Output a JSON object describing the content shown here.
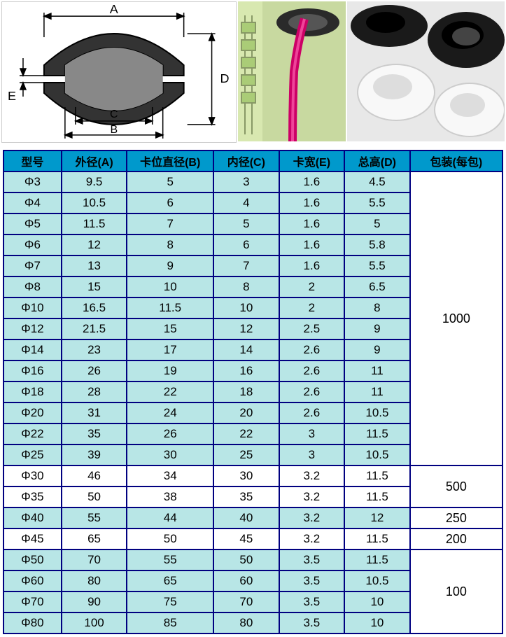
{
  "diagram_labels": {
    "A": "A",
    "B": "B",
    "C": "C",
    "D": "D",
    "E": "E"
  },
  "table": {
    "headers": [
      "型号",
      "外径(A)",
      "卡位直径(B)",
      "内径(C)",
      "卡宽(E)",
      "总高(D)",
      "包装(每包)"
    ],
    "header_bg": "#0099cc",
    "stripe_bg": "#b8e6e6",
    "plain_bg": "#ffffff",
    "border_color": "#000080",
    "packs": [
      {
        "span": 14,
        "label": "1000"
      },
      {
        "span": 2,
        "label": "500"
      },
      {
        "span": 1,
        "label": "250"
      },
      {
        "span": 1,
        "label": "200"
      },
      {
        "span": 4,
        "label": "100"
      }
    ],
    "rows": [
      {
        "model": "Φ3",
        "a": "9.5",
        "b": "5",
        "c": "3",
        "e": "1.6",
        "d": "4.5",
        "stripe": true,
        "packStart": true,
        "packIdx": 0
      },
      {
        "model": "Φ4",
        "a": "10.5",
        "b": "6",
        "c": "4",
        "e": "1.6",
        "d": "5.5",
        "stripe": true
      },
      {
        "model": "Φ5",
        "a": "11.5",
        "b": "7",
        "c": "5",
        "e": "1.6",
        "d": "5",
        "stripe": true
      },
      {
        "model": "Φ6",
        "a": "12",
        "b": "8",
        "c": "6",
        "e": "1.6",
        "d": "5.8",
        "stripe": true
      },
      {
        "model": "Φ7",
        "a": "13",
        "b": "9",
        "c": "7",
        "e": "1.6",
        "d": "5.5",
        "stripe": true
      },
      {
        "model": "Φ8",
        "a": "15",
        "b": "10",
        "c": "8",
        "e": "2",
        "d": "6.5",
        "stripe": true
      },
      {
        "model": "Φ10",
        "a": "16.5",
        "b": "11.5",
        "c": "10",
        "e": "2",
        "d": "8",
        "stripe": true
      },
      {
        "model": "Φ12",
        "a": "21.5",
        "b": "15",
        "c": "12",
        "e": "2.5",
        "d": "9",
        "stripe": true
      },
      {
        "model": "Φ14",
        "a": "23",
        "b": "17",
        "c": "14",
        "e": "2.6",
        "d": "9",
        "stripe": true
      },
      {
        "model": "Φ16",
        "a": "26",
        "b": "19",
        "c": "16",
        "e": "2.6",
        "d": "11",
        "stripe": true
      },
      {
        "model": "Φ18",
        "a": "28",
        "b": "22",
        "c": "18",
        "e": "2.6",
        "d": "11",
        "stripe": true
      },
      {
        "model": "Φ20",
        "a": "31",
        "b": "24",
        "c": "20",
        "e": "2.6",
        "d": "10.5",
        "stripe": true
      },
      {
        "model": "Φ22",
        "a": "35",
        "b": "26",
        "c": "22",
        "e": "3",
        "d": "11.5",
        "stripe": true
      },
      {
        "model": "Φ25",
        "a": "39",
        "b": "30",
        "c": "25",
        "e": "3",
        "d": "10.5",
        "stripe": true
      },
      {
        "model": "Φ30",
        "a": "46",
        "b": "34",
        "c": "30",
        "e": "3.2",
        "d": "11.5",
        "stripe": false,
        "packStart": true,
        "packIdx": 1
      },
      {
        "model": "Φ35",
        "a": "50",
        "b": "38",
        "c": "35",
        "e": "3.2",
        "d": "11.5",
        "stripe": false
      },
      {
        "model": "Φ40",
        "a": "55",
        "b": "44",
        "c": "40",
        "e": "3.2",
        "d": "12",
        "stripe": true,
        "packStart": true,
        "packIdx": 2
      },
      {
        "model": "Φ45",
        "a": "65",
        "b": "50",
        "c": "45",
        "e": "3.2",
        "d": "11.5",
        "stripe": false,
        "packStart": true,
        "packIdx": 3
      },
      {
        "model": "Φ50",
        "a": "70",
        "b": "55",
        "c": "50",
        "e": "3.5",
        "d": "11.5",
        "stripe": true,
        "packStart": true,
        "packIdx": 4
      },
      {
        "model": "Φ60",
        "a": "80",
        "b": "65",
        "c": "60",
        "e": "3.5",
        "d": "10.5",
        "stripe": true
      },
      {
        "model": "Φ70",
        "a": "90",
        "b": "75",
        "c": "70",
        "e": "3.5",
        "d": "10",
        "stripe": true
      },
      {
        "model": "Φ80",
        "a": "100",
        "b": "85",
        "c": "80",
        "e": "3.5",
        "d": "10",
        "stripe": true
      }
    ]
  }
}
